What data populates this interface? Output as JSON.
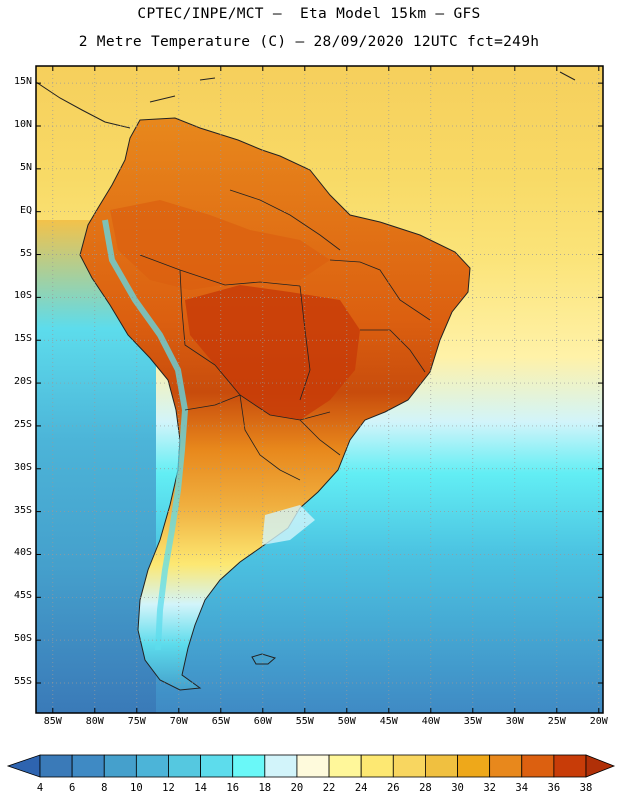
{
  "title_line1": "CPTEC/INPE/MCT –  Eta Model 15km – GFS",
  "title_line2": "2 Metre Temperature (C) – 28/09/2020 12UTC fct=249h",
  "map": {
    "lat_ticks": [
      {
        "value": 15,
        "label": "15N"
      },
      {
        "value": 10,
        "label": "10N"
      },
      {
        "value": 5,
        "label": "5N"
      },
      {
        "value": 0,
        "label": "EQ"
      },
      {
        "value": -5,
        "label": "5S"
      },
      {
        "value": -10,
        "label": "10S"
      },
      {
        "value": -15,
        "label": "15S"
      },
      {
        "value": -20,
        "label": "20S"
      },
      {
        "value": -25,
        "label": "25S"
      },
      {
        "value": -30,
        "label": "30S"
      },
      {
        "value": -35,
        "label": "35S"
      },
      {
        "value": -40,
        "label": "40S"
      },
      {
        "value": -45,
        "label": "45S"
      },
      {
        "value": -50,
        "label": "50S"
      },
      {
        "value": -55,
        "label": "55S"
      }
    ],
    "lon_ticks": [
      {
        "value": -85,
        "label": "85W"
      },
      {
        "value": -80,
        "label": "80W"
      },
      {
        "value": -75,
        "label": "75W"
      },
      {
        "value": -70,
        "label": "70W"
      },
      {
        "value": -65,
        "label": "65W"
      },
      {
        "value": -60,
        "label": "60W"
      },
      {
        "value": -55,
        "label": "55W"
      },
      {
        "value": -50,
        "label": "50W"
      },
      {
        "value": -45,
        "label": "45W"
      },
      {
        "value": -40,
        "label": "40W"
      },
      {
        "value": -35,
        "label": "35W"
      },
      {
        "value": -30,
        "label": "30W"
      },
      {
        "value": -25,
        "label": "25W"
      },
      {
        "value": -20,
        "label": "20W"
      }
    ]
  },
  "colorbar": {
    "labels": [
      "4",
      "6",
      "8",
      "10",
      "12",
      "14",
      "16",
      "18",
      "20",
      "22",
      "24",
      "26",
      "28",
      "30",
      "32",
      "34",
      "36",
      "38"
    ],
    "colors": [
      "#3a7ab8",
      "#3f8ac4",
      "#45a0cc",
      "#4cb4d8",
      "#55c8e0",
      "#5ddcec",
      "#6af8f8",
      "#d2f4fa",
      "#fefadc",
      "#fff79a",
      "#fde872",
      "#f8d660",
      "#f0c040",
      "#eea81a",
      "#e8881c",
      "#dc6010",
      "#c83c08"
    ],
    "under_color": "#2e64b0",
    "over_color": "#b03008"
  }
}
